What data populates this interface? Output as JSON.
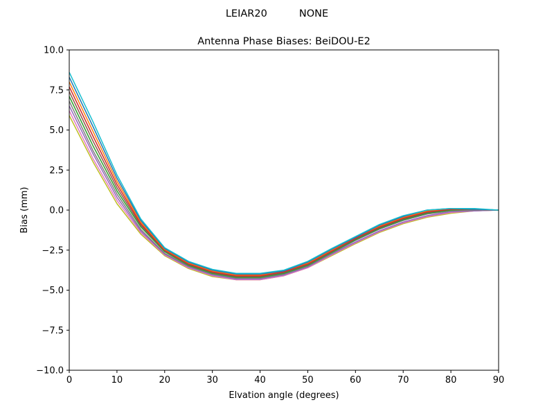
{
  "chart_data": {
    "type": "line",
    "suptitle": "LEIAR20          NONE",
    "title": "Antenna Phase Biases: BeiDOU-E2",
    "xlabel": "Elvation angle (degrees)",
    "ylabel": "Bias (mm)",
    "xlim": [
      0,
      90
    ],
    "ylim": [
      -10,
      10
    ],
    "xticks": [
      0,
      10,
      20,
      30,
      40,
      50,
      60,
      70,
      80,
      90
    ],
    "yticks": [
      -10.0,
      -7.5,
      -5.0,
      -2.5,
      0.0,
      2.5,
      5.0,
      7.5,
      10.0
    ],
    "ytick_labels": [
      "−10.0",
      "−7.5",
      "−5.0",
      "−2.5",
      "0.0",
      "2.5",
      "5.0",
      "7.5",
      "10.0"
    ],
    "grid": false,
    "x": [
      0,
      5,
      10,
      15,
      20,
      25,
      30,
      35,
      40,
      45,
      50,
      55,
      60,
      65,
      70,
      75,
      80,
      85,
      90
    ],
    "series": [
      {
        "color": "#bcbd22",
        "values": [
          5.9,
          3.0,
          0.4,
          -1.5,
          -2.85,
          -3.65,
          -4.15,
          -4.35,
          -4.35,
          -4.1,
          -3.6,
          -2.85,
          -2.1,
          -1.4,
          -0.85,
          -0.45,
          -0.2,
          -0.05,
          0.0
        ]
      },
      {
        "color": "#e377c2",
        "values": [
          6.2,
          3.2,
          0.6,
          -1.4,
          -2.8,
          -3.6,
          -4.1,
          -4.35,
          -4.35,
          -4.1,
          -3.6,
          -2.8,
          -2.05,
          -1.35,
          -0.8,
          -0.4,
          -0.15,
          -0.05,
          0.0
        ]
      },
      {
        "color": "#9467bd",
        "values": [
          6.5,
          3.5,
          0.8,
          -1.3,
          -2.75,
          -3.55,
          -4.05,
          -4.3,
          -4.3,
          -4.05,
          -3.55,
          -2.75,
          -2.0,
          -1.3,
          -0.75,
          -0.35,
          -0.1,
          -0.05,
          0.0
        ]
      },
      {
        "color": "#7f7f7f",
        "values": [
          6.8,
          3.7,
          1.0,
          -1.2,
          -2.7,
          -3.5,
          -4.0,
          -4.25,
          -4.25,
          -4.0,
          -3.5,
          -2.7,
          -1.9,
          -1.2,
          -0.65,
          -0.25,
          -0.05,
          0.0,
          0.0
        ]
      },
      {
        "color": "#2ca02c",
        "values": [
          7.1,
          4.0,
          1.2,
          -1.05,
          -2.6,
          -3.45,
          -3.95,
          -4.2,
          -4.2,
          -3.95,
          -3.45,
          -2.65,
          -1.85,
          -1.15,
          -0.6,
          -0.2,
          0.0,
          0.05,
          0.0
        ]
      },
      {
        "color": "#8c564b",
        "values": [
          7.4,
          4.3,
          1.4,
          -0.95,
          -2.55,
          -3.4,
          -3.9,
          -4.15,
          -4.15,
          -3.9,
          -3.4,
          -2.6,
          -1.8,
          -1.1,
          -0.55,
          -0.15,
          0.05,
          0.05,
          0.0
        ]
      },
      {
        "color": "#d62728",
        "values": [
          7.7,
          4.6,
          1.6,
          -0.85,
          -2.5,
          -3.35,
          -3.85,
          -4.1,
          -4.1,
          -3.85,
          -3.35,
          -2.55,
          -1.75,
          -1.05,
          -0.5,
          -0.1,
          0.05,
          0.05,
          0.0
        ]
      },
      {
        "color": "#ff7f0e",
        "values": [
          8.0,
          4.9,
          1.8,
          -0.75,
          -2.45,
          -3.3,
          -3.8,
          -4.05,
          -4.05,
          -3.8,
          -3.3,
          -2.5,
          -1.7,
          -1.0,
          -0.45,
          -0.05,
          0.1,
          0.05,
          0.0
        ]
      },
      {
        "color": "#1f77b4",
        "values": [
          8.3,
          5.2,
          2.0,
          -0.65,
          -2.4,
          -3.25,
          -3.75,
          -4.0,
          -4.0,
          -3.8,
          -3.25,
          -2.45,
          -1.7,
          -0.95,
          -0.4,
          0.0,
          0.1,
          0.05,
          0.0
        ]
      },
      {
        "color": "#17becf",
        "values": [
          8.6,
          5.5,
          2.2,
          -0.55,
          -2.35,
          -3.2,
          -3.7,
          -3.95,
          -3.95,
          -3.75,
          -3.2,
          -2.4,
          -1.65,
          -0.9,
          -0.35,
          0.0,
          0.1,
          0.1,
          0.0
        ]
      }
    ]
  }
}
